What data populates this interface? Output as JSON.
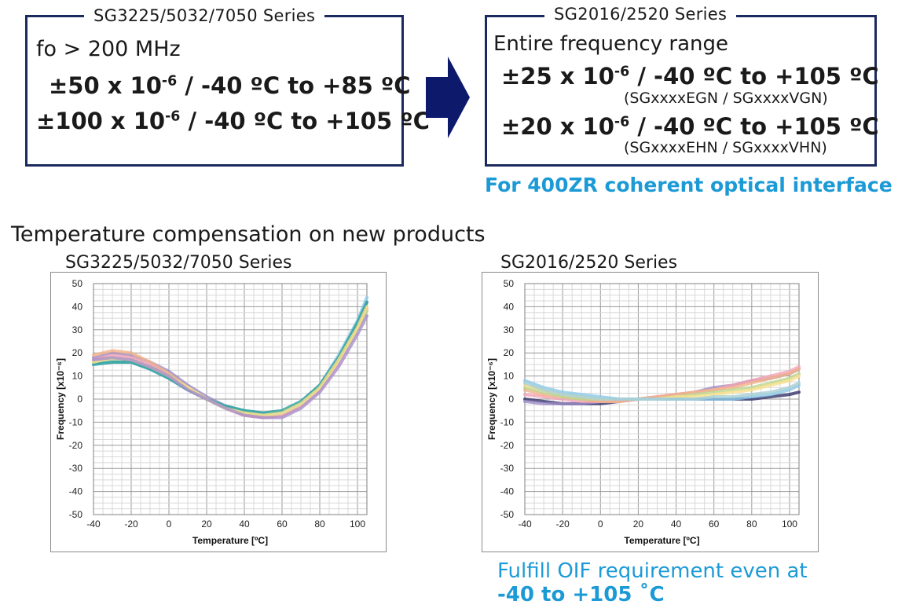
{
  "left_box": {
    "legend": "SG3225/5032/7050 Series",
    "line1": "fo > 200 MHz",
    "spec1_prefix": "±50 x 10",
    "spec1_exp": "-6",
    "spec1_suffix": " / -40 ºC to +85 ºC",
    "spec2_prefix": "±100 x 10",
    "spec2_exp": "-6",
    "spec2_suffix": " / -40 ºC to +105 ºC"
  },
  "right_box": {
    "legend": "SG2016/2520 Series",
    "line1": "Entire frequency range",
    "spec1_prefix": "±25 x 10",
    "spec1_exp": "-6",
    "spec1_suffix": " / -40 ºC to +105 ºC",
    "spec1_models": "(SGxxxxEGN / SGxxxxVGN)",
    "spec2_prefix": "±20 x 10",
    "spec2_exp": "-6",
    "spec2_suffix": " / -40 ºC to +105 ºC",
    "spec2_models": "(SGxxxxEHN / SGxxxxVHN)"
  },
  "note_400zr": "For 400ZR coherent optical interface",
  "section_title": "Temperature compensation on new products",
  "note_oif_line1": "Fulfill OIF requirement even at",
  "note_oif_line2": "-40 to +105 ˚C",
  "colors": {
    "navy": "#1b2a5e",
    "accent": "#1c9ad6"
  },
  "chart_data": [
    {
      "type": "line",
      "title": "SG3225/5032/7050 Series",
      "xlabel": "Temperature [ºC]",
      "ylabel": "Frequency [x10⁻⁶]",
      "xlim": [
        -40,
        105
      ],
      "ylim": [
        -50,
        50
      ],
      "xticks": [
        -40,
        -20,
        0,
        20,
        40,
        60,
        80,
        100
      ],
      "yticks": [
        50,
        40,
        30,
        20,
        10,
        0,
        -10,
        -20,
        -30,
        -40,
        -50
      ],
      "grid": true,
      "x": [
        -40,
        -30,
        -20,
        -10,
        0,
        10,
        20,
        30,
        40,
        50,
        60,
        70,
        80,
        90,
        100,
        105
      ],
      "series": [
        {
          "color": "#9b8bc4",
          "values": [
            18,
            20,
            19,
            16,
            12,
            6,
            1,
            -3,
            -6,
            -8,
            -7,
            -2,
            6,
            18,
            32,
            42
          ]
        },
        {
          "color": "#f2b38a",
          "values": [
            19,
            21,
            20,
            16,
            11,
            5,
            0,
            -4,
            -7,
            -8,
            -7,
            -3,
            5,
            17,
            31,
            40
          ]
        },
        {
          "color": "#f4a3b5",
          "values": [
            17,
            19,
            18,
            15,
            10,
            5,
            0,
            -4,
            -7,
            -8,
            -7,
            -3,
            4,
            16,
            30,
            39
          ]
        },
        {
          "color": "#bcd68e",
          "values": [
            16,
            17,
            16,
            14,
            10,
            5,
            0,
            -4,
            -6,
            -7,
            -6,
            -2,
            5,
            17,
            30,
            38
          ]
        },
        {
          "color": "#8cc9e8",
          "values": [
            15,
            16,
            16,
            13,
            9,
            4,
            0,
            -3,
            -5,
            -6,
            -6,
            -2,
            6,
            19,
            34,
            44
          ]
        },
        {
          "color": "#2a9f9b",
          "values": [
            15,
            16,
            16,
            13,
            9,
            4,
            0,
            -3,
            -5,
            -6,
            -5,
            -1,
            6,
            18,
            33,
            42
          ]
        },
        {
          "color": "#f7e08a",
          "values": [
            16,
            18,
            17,
            14,
            10,
            5,
            0,
            -4,
            -6,
            -7,
            -6,
            -2,
            5,
            17,
            31,
            40
          ]
        },
        {
          "color": "#a98fcb",
          "values": [
            17,
            18,
            17,
            14,
            10,
            4,
            0,
            -4,
            -7,
            -8,
            -8,
            -4,
            3,
            14,
            28,
            36
          ]
        }
      ]
    },
    {
      "type": "line",
      "title": "SG2016/2520 Series",
      "xlabel": "Temperature [ºC]",
      "ylabel": "Frequency [x10⁻⁶]",
      "xlim": [
        -40,
        105
      ],
      "ylim": [
        -50,
        50
      ],
      "xticks": [
        -40,
        -20,
        0,
        20,
        40,
        60,
        80,
        100
      ],
      "yticks": [
        50,
        40,
        30,
        20,
        10,
        0,
        -10,
        -20,
        -30,
        -40,
        -50
      ],
      "grid": true,
      "x": [
        -40,
        -30,
        -20,
        -10,
        0,
        10,
        20,
        30,
        40,
        50,
        60,
        70,
        80,
        90,
        100,
        105
      ],
      "series": [
        {
          "color": "#33336b",
          "values": [
            0,
            -1,
            -2,
            -2,
            -2,
            -1,
            0,
            0,
            0,
            0,
            0,
            0,
            0,
            1,
            2,
            3
          ]
        },
        {
          "color": "#9b8bc4",
          "values": [
            -1,
            -2,
            -2,
            -2,
            -1,
            -1,
            0,
            1,
            2,
            3,
            5,
            6,
            8,
            9,
            11,
            13
          ]
        },
        {
          "color": "#f4a3b5",
          "values": [
            2,
            1,
            0,
            -1,
            -1,
            -1,
            0,
            1,
            2,
            3,
            4,
            6,
            8,
            10,
            12,
            14
          ]
        },
        {
          "color": "#f2b38a",
          "values": [
            4,
            2,
            1,
            0,
            -1,
            -1,
            0,
            1,
            2,
            3,
            4,
            5,
            7,
            9,
            11,
            13
          ]
        },
        {
          "color": "#bcd68e",
          "values": [
            5,
            3,
            1,
            0,
            0,
            0,
            0,
            0,
            1,
            2,
            3,
            4,
            5,
            7,
            9,
            11
          ]
        },
        {
          "color": "#f7e08a",
          "values": [
            6,
            4,
            2,
            1,
            0,
            0,
            0,
            0,
            1,
            1,
            2,
            3,
            4,
            6,
            8,
            10
          ]
        },
        {
          "color": "#8cc9e8",
          "values": [
            8,
            5,
            3,
            2,
            1,
            0,
            0,
            0,
            0,
            0,
            0,
            0,
            1,
            2,
            4,
            6
          ]
        },
        {
          "color": "#a8cfd6",
          "values": [
            7,
            4,
            2,
            1,
            0,
            0,
            0,
            0,
            0,
            0,
            1,
            1,
            2,
            3,
            5,
            7
          ]
        }
      ]
    }
  ]
}
